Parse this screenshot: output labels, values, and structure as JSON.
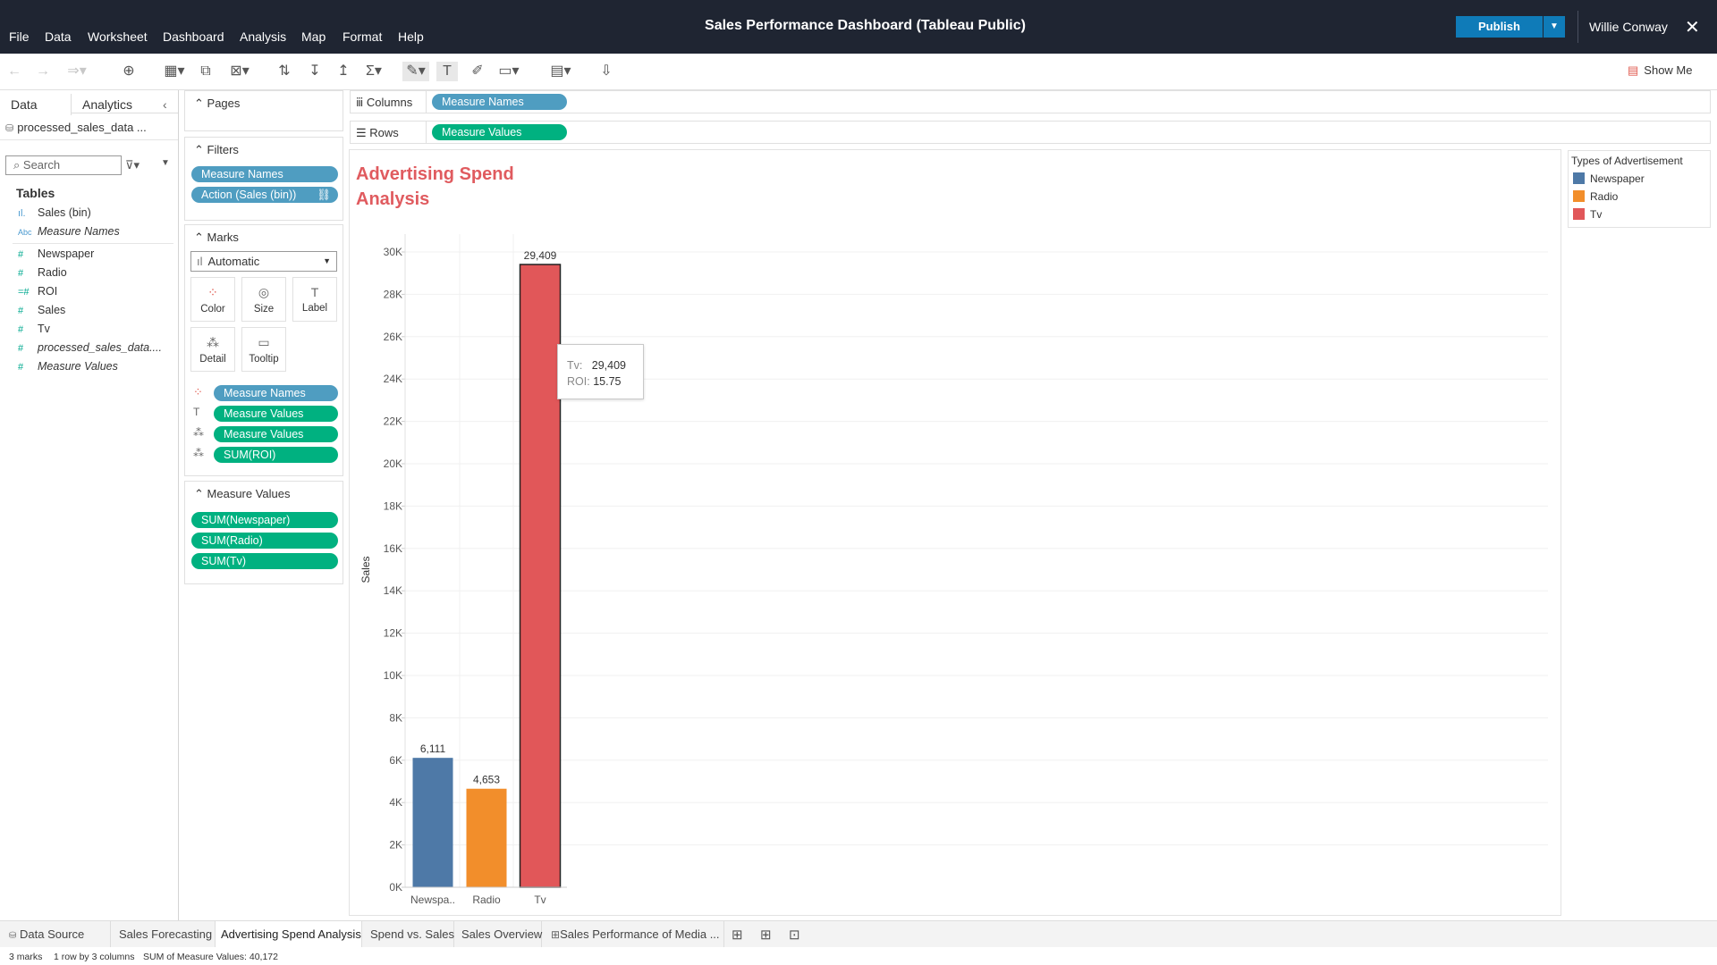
{
  "menu": [
    "File",
    "Data",
    "Worksheet",
    "Dashboard",
    "Analysis",
    "Map",
    "Format",
    "Help"
  ],
  "app_title": "Sales Performance Dashboard (Tableau Public)",
  "publish_label": "Publish",
  "user_name": "Willie Conway",
  "show_me_label": "Show Me",
  "left_pane": {
    "tab_data": "Data",
    "tab_analytics": "Analytics",
    "datasource": "processed_sales_data ...",
    "search_placeholder": "Search",
    "tables_heading": "Tables",
    "fields": [
      {
        "name": "Sales (bin)",
        "icon": "ıl.",
        "italic": false
      },
      {
        "name": "Measure Names",
        "icon": "Abc",
        "italic": true
      },
      {
        "name": "Newspaper",
        "icon": "#",
        "italic": false
      },
      {
        "name": "Radio",
        "icon": "#",
        "italic": false
      },
      {
        "name": "ROI",
        "icon": "=#",
        "italic": false
      },
      {
        "name": "Sales",
        "icon": "#",
        "italic": false
      },
      {
        "name": "Tv",
        "icon": "#",
        "italic": false
      },
      {
        "name": "processed_sales_data....",
        "icon": "#",
        "italic": true
      },
      {
        "name": "Measure Values",
        "icon": "#",
        "italic": true
      }
    ]
  },
  "pages_heading": "Pages",
  "filters": {
    "heading": "Filters",
    "pills": [
      "Measure Names",
      "Action (Sales (bin))"
    ]
  },
  "marks": {
    "heading": "Marks",
    "type": "Automatic",
    "buttons": [
      "Color",
      "Size",
      "Label",
      "Detail",
      "Tooltip"
    ],
    "pills": [
      "Measure Names",
      "Measure Values",
      "Measure Values",
      "SUM(ROI)"
    ]
  },
  "measure_values": {
    "heading": "Measure Values",
    "pills": [
      "SUM(Newspaper)",
      "SUM(Radio)",
      "SUM(Tv)"
    ]
  },
  "shelves": {
    "columns_label": "Columns",
    "columns_pill": "Measure Names",
    "rows_label": "Rows",
    "rows_pill": "Measure Values"
  },
  "chart_data": {
    "type": "bar",
    "title": "Advertising Spend Analysis",
    "categories": [
      "Newspa..",
      "Radio",
      "Tv"
    ],
    "values": [
      6111,
      4653,
      29409
    ],
    "value_labels": [
      "6,111",
      "4,653",
      "29,409"
    ],
    "colors": [
      "#4e79a7",
      "#f28e2b",
      "#e15759"
    ],
    "ylabel": "Sales",
    "ylim": [
      0,
      30000
    ],
    "yticks": [
      0,
      2000,
      4000,
      6000,
      8000,
      10000,
      12000,
      14000,
      16000,
      18000,
      20000,
      22000,
      24000,
      26000,
      28000,
      30000
    ],
    "ytick_labels": [
      "0K",
      "2K",
      "4K",
      "6K",
      "8K",
      "10K",
      "12K",
      "14K",
      "16K",
      "18K",
      "20K",
      "22K",
      "24K",
      "26K",
      "28K",
      "30K"
    ],
    "grid": true,
    "legend_position": "right"
  },
  "legend": {
    "title": "Types of Advertisement",
    "items": [
      {
        "label": "Newspaper",
        "color": "#4e79a7"
      },
      {
        "label": "Radio",
        "color": "#f28e2b"
      },
      {
        "label": "Tv",
        "color": "#e15759"
      }
    ]
  },
  "tooltip": {
    "k1": "Tv:",
    "v1": "29,409",
    "k2": "ROI:",
    "v2": "15.75"
  },
  "sheet_tabs": [
    "Data Source",
    "Sales Forecasting",
    "Advertising Spend Analysis",
    "Spend vs. Sales",
    "Sales Overview",
    "Sales Performance of Media ..."
  ],
  "active_tab": "Advertising Spend Analysis",
  "status": {
    "marks": "3 marks",
    "layout": "1 row by 3 columns",
    "sum": "SUM of Measure Values: 40,172"
  }
}
